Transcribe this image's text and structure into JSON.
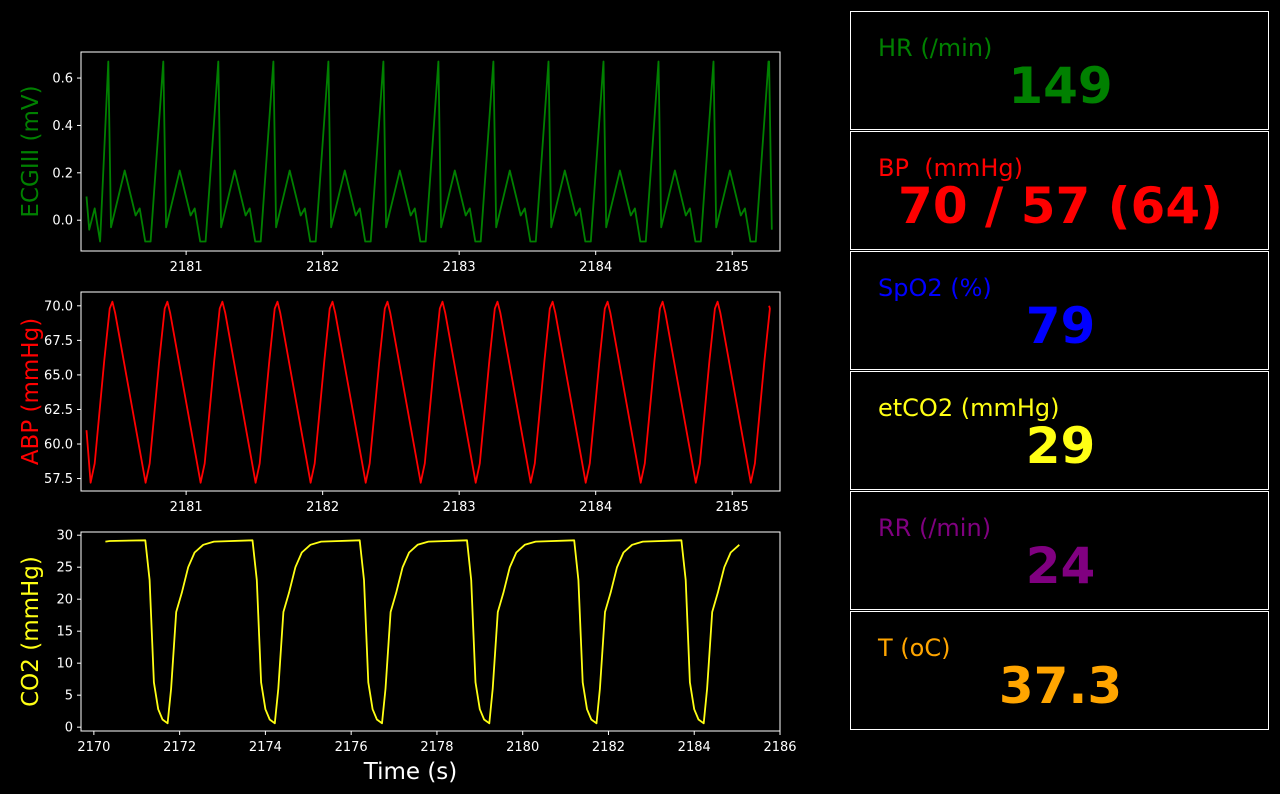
{
  "chart_data": [
    {
      "type": "line",
      "ylabel": "ECGIII (mV)",
      "color": "#008000",
      "xlim": [
        2180.23,
        2185.35
      ],
      "ylim": [
        -0.13,
        0.71
      ],
      "xticks": [
        2181,
        2182,
        2183,
        2184,
        2185
      ],
      "yticks": [
        0.0,
        0.2,
        0.4,
        0.6
      ],
      "ytick_labels": [
        "0.0",
        "0.2",
        "0.4",
        "0.6"
      ],
      "series": [
        {
          "beat_period_s": 0.403,
          "first_r_peak_s": 2180.43,
          "r_peak": 0.67,
          "waveform_points": [
            [
              2180.27,
              0.1
            ],
            [
              2180.29,
              -0.04
            ],
            [
              2180.33,
              0.05
            ],
            [
              2180.37,
              -0.09
            ],
            [
              2180.43,
              0.67
            ],
            [
              2180.45,
              -0.03
            ],
            [
              2180.55,
              0.21
            ],
            [
              2180.63,
              0.02
            ],
            [
              2180.66,
              0.05
            ],
            [
              2180.7,
              -0.09
            ],
            [
              2180.74,
              -0.09
            ],
            [
              2185.27,
              0.67
            ],
            [
              2185.29,
              -0.04
            ]
          ]
        }
      ]
    },
    {
      "type": "line",
      "ylabel": "ABP (mmHg)",
      "color": "#ff0000",
      "xlim": [
        2180.23,
        2185.35
      ],
      "ylim": [
        56.6,
        71.0
      ],
      "xticks": [
        2181,
        2182,
        2183,
        2184,
        2185
      ],
      "yticks": [
        57.5,
        60.0,
        62.5,
        65.0,
        67.5,
        70.0
      ],
      "ytick_labels": [
        "57.5",
        "60.0",
        "62.5",
        "65.0",
        "67.5",
        "70.0"
      ],
      "series": [
        {
          "beat_period_s": 0.403,
          "first_peak_s": 2180.46,
          "systolic": 70.3,
          "diastolic": 57.2,
          "start_value": 61.0,
          "end_value": 70.0,
          "start_s": 2180.27,
          "end_s": 2185.27
        }
      ]
    },
    {
      "type": "line",
      "ylabel": "CO2 (mmHg)",
      "xlabel": "Time (s)",
      "color": "#ffff14",
      "xlim": [
        2169.7,
        2186.0
      ],
      "ylim": [
        -0.6,
        30.5
      ],
      "xticks": [
        2170,
        2172,
        2174,
        2176,
        2178,
        2180,
        2182,
        2184,
        2186
      ],
      "yticks": [
        0,
        5,
        10,
        15,
        20,
        25,
        30
      ],
      "ytick_labels": [
        "0",
        "5",
        "10",
        "15",
        "20",
        "25",
        "30"
      ],
      "series": [
        {
          "breath_period_s": 2.5,
          "first_drop_s": 2171.2,
          "plateau": 29.2,
          "minimum": 0.6,
          "start_s": 2170.27,
          "end_s": 2185.27,
          "breath_points": [
            [
              0.0,
              29.2
            ],
            [
              0.1,
              23.0
            ],
            [
              0.2,
              7.0
            ],
            [
              0.3,
              2.8
            ],
            [
              0.4,
              1.2
            ],
            [
              0.52,
              0.6
            ],
            [
              0.6,
              6.0
            ],
            [
              0.72,
              18.0
            ],
            [
              0.85,
              21.0
            ],
            [
              1.0,
              25.0
            ],
            [
              1.15,
              27.3
            ],
            [
              1.35,
              28.5
            ],
            [
              1.6,
              29.0
            ],
            [
              2.5,
              29.2
            ]
          ]
        }
      ]
    }
  ],
  "vitals": [
    {
      "label": "HR (/min)",
      "value": "149",
      "color": "#008000"
    },
    {
      "label": "BP  (mmHg)",
      "value": "70 / 57 (64)",
      "color": "#ff0000"
    },
    {
      "label": "SpO2 (%)",
      "value": "79",
      "color": "#0000ff"
    },
    {
      "label": "etCO2 (mmHg)",
      "value": "29",
      "color": "#ffff14"
    },
    {
      "label": "RR (/min)",
      "value": "24",
      "color": "#800080"
    },
    {
      "label": "T (oC)",
      "value": "37.3",
      "color": "#ffa500"
    }
  ]
}
